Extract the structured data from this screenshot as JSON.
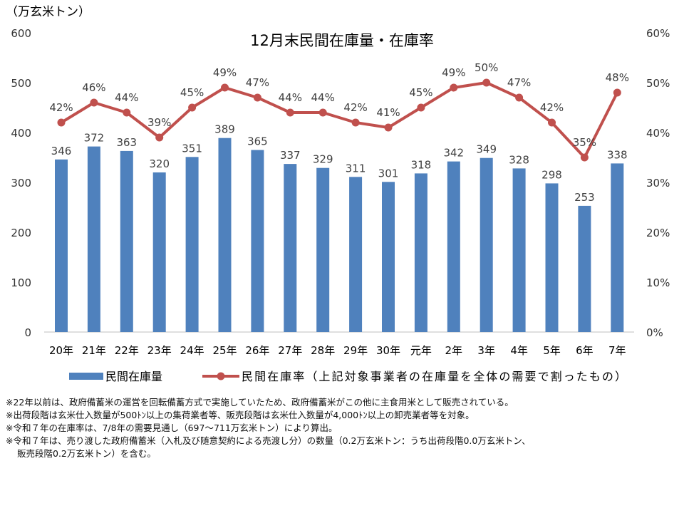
{
  "chart_data": {
    "type": "bar+line",
    "title": "12月末民間在庫量・在庫率",
    "ylabel_left": "（万玄米トン）",
    "ylim_left": [
      0,
      600
    ],
    "yticks_left": [
      "0",
      "100",
      "200",
      "300",
      "400",
      "500",
      "600"
    ],
    "ylim_right": [
      0,
      60
    ],
    "yticks_right": [
      "0%",
      "10%",
      "20%",
      "30%",
      "40%",
      "50%",
      "60%"
    ],
    "grid": false,
    "legend_position": "bottom",
    "categories": [
      "20年",
      "21年",
      "22年",
      "23年",
      "24年",
      "25年",
      "26年",
      "27年",
      "28年",
      "29年",
      "30年",
      "元年",
      "2年",
      "3年",
      "4年",
      "5年",
      "6年",
      "7年"
    ],
    "series": [
      {
        "name": "民間在庫量",
        "type": "bar",
        "axis": "left",
        "color": "#4F81BD",
        "values": [
          346,
          372,
          363,
          320,
          351,
          389,
          365,
          337,
          329,
          311,
          301,
          318,
          342,
          349,
          328,
          298,
          253,
          338
        ]
      },
      {
        "name": "民間在庫率（上記対象事業者の在庫量を全体の需要で割ったもの）",
        "type": "line",
        "axis": "right",
        "color": "#C0504D",
        "values": [
          42,
          46,
          44,
          39,
          45,
          49,
          47,
          44,
          44,
          42,
          41,
          45,
          49,
          50,
          47,
          42,
          35,
          48
        ]
      }
    ]
  },
  "notes": [
    "※22年以前は、政府備蓄米の運営を回転備蓄方式で実施していたため、政府備蓄米がこの他に主食用米として販売されている。",
    "※出荷段階は玄米仕入数量が500ﾄﾝ以上の集荷業者等、販売段階は玄米仕入数量が4,000ﾄﾝ以上の卸売業者等を対象。",
    "※令和７年の在庫率は、7/8年の需要見通し（697～711万玄米トン）により算出。",
    "※令和７年は、売り渡した政府備蓄米（入札及び随意契約による売渡し分）の数量（0.2万玄米トン：うち出荷段階0.0万玄米トン、",
    "販売段階0.2万玄米トン）を含む。"
  ]
}
